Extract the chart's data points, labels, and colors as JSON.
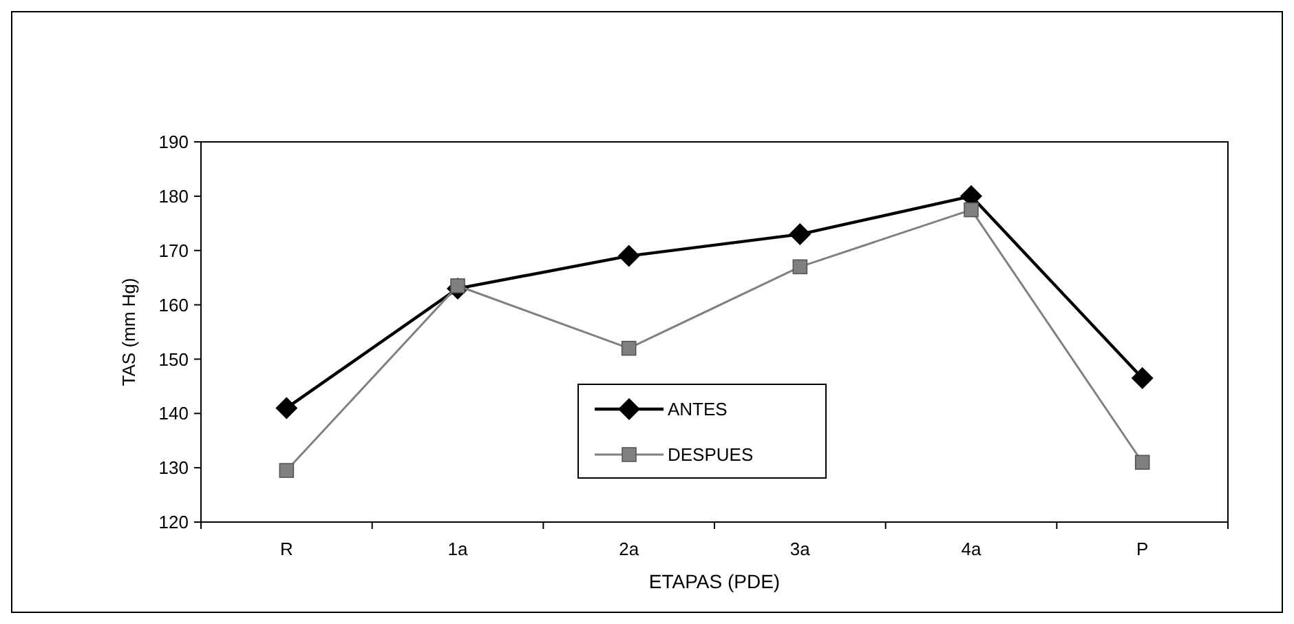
{
  "chart_data": {
    "type": "line",
    "xlabel": "ETAPAS (PDE)",
    "ylabel": "TAS (mm Hg)",
    "categories": [
      "R",
      "1a",
      "2a",
      "3a",
      "4a",
      "P"
    ],
    "series": [
      {
        "name": "ANTES",
        "color": "#000000",
        "marker": "diamond",
        "values": [
          141,
          163,
          169,
          173,
          180,
          146.5
        ]
      },
      {
        "name": "DESPUES",
        "color": "#808080",
        "marker": "square",
        "values": [
          129.5,
          163.5,
          152,
          167,
          177.5,
          131
        ]
      }
    ],
    "ylim": [
      120,
      190
    ],
    "yticks": [
      120,
      130,
      140,
      150,
      160,
      170,
      180,
      190
    ],
    "grid": false,
    "legend": "bottom",
    "line_style": "solid"
  }
}
